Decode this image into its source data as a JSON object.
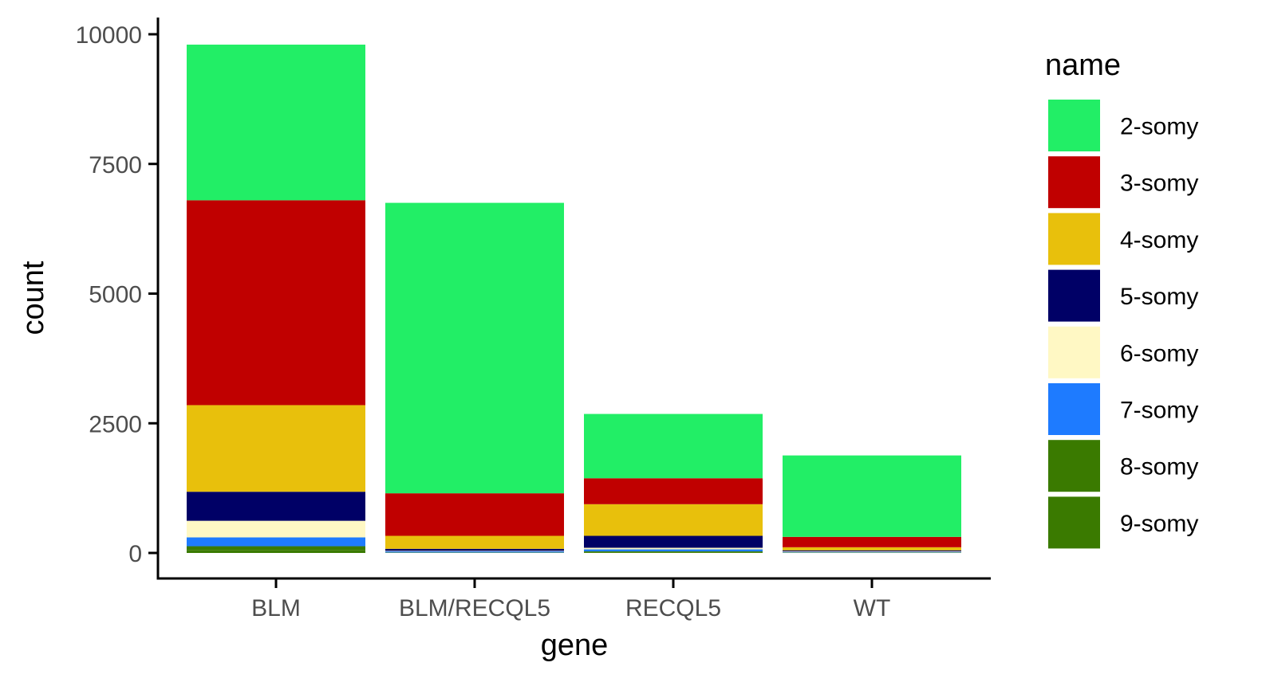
{
  "chart_data": {
    "type": "bar",
    "stacked": true,
    "xlabel": "gene",
    "ylabel": "count",
    "ylim": [
      0,
      10000
    ],
    "y_ticks": [
      0,
      2500,
      5000,
      7500,
      10000
    ],
    "y_tick_labels": [
      "0",
      "2500",
      "5000",
      "7500",
      "10000"
    ],
    "categories": [
      "BLM",
      "BLM/RECQL5",
      "RECQL5",
      "WT"
    ],
    "legend": {
      "title": "name",
      "placement": "right"
    },
    "grid": false,
    "series": [
      {
        "name": "2-somy",
        "color": "#22EE66",
        "values": [
          3000,
          5600,
          1240,
          1570
        ]
      },
      {
        "name": "3-somy",
        "color": "#C00000",
        "values": [
          3950,
          820,
          500,
          200
        ]
      },
      {
        "name": "4-somy",
        "color": "#E8C00C",
        "values": [
          1670,
          250,
          610,
          60
        ]
      },
      {
        "name": "5-somy",
        "color": "#000066",
        "values": [
          560,
          40,
          230,
          20
        ]
      },
      {
        "name": "6-somy",
        "color": "#FFF8C4",
        "values": [
          320,
          10,
          30,
          10
        ]
      },
      {
        "name": "7-somy",
        "color": "#1E7BFF",
        "values": [
          170,
          20,
          40,
          10
        ]
      },
      {
        "name": "8-somy",
        "color": "#3A7A00",
        "values": [
          80,
          5,
          20,
          5
        ]
      },
      {
        "name": "9-somy",
        "color": "#3A7A00",
        "values": [
          50,
          5,
          10,
          5
        ]
      }
    ]
  }
}
